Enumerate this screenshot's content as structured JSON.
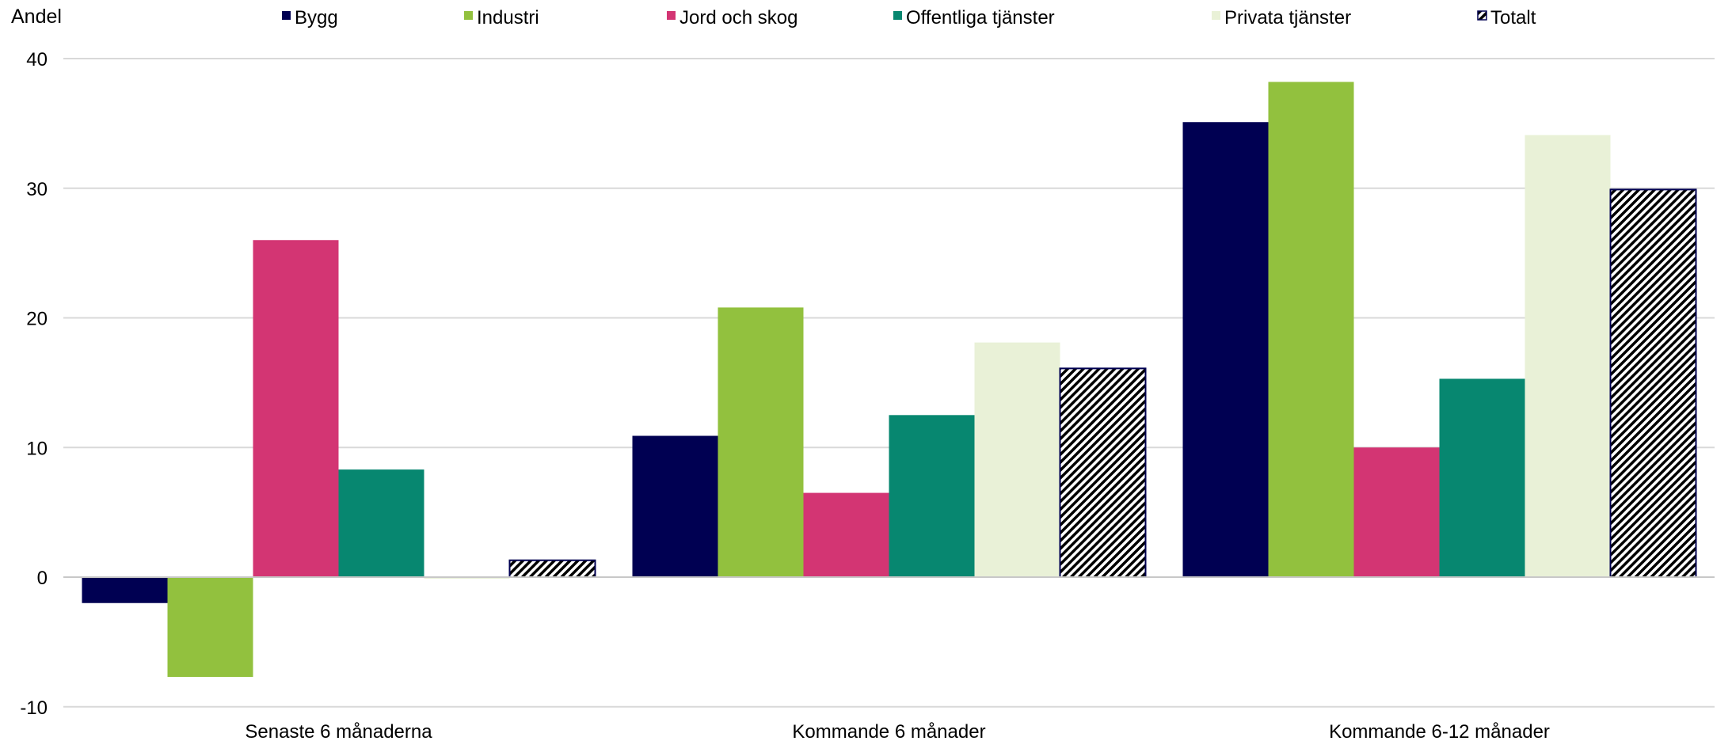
{
  "chart_data": {
    "type": "bar",
    "ylabel": "Andel",
    "ylim": [
      -10,
      40
    ],
    "yticks": [
      -10,
      0,
      10,
      20,
      30,
      40
    ],
    "grid": true,
    "legend_position": "top",
    "categories": [
      "Senaste 6 månaderna",
      "Kommande 6 månader",
      "Kommande 6-12 månader"
    ],
    "series": [
      {
        "name": "Bygg",
        "color": "#000052",
        "values": [
          -2.0,
          10.9,
          35.1
        ]
      },
      {
        "name": "Industri",
        "color": "#92C13E",
        "values": [
          -7.7,
          20.8,
          38.2
        ]
      },
      {
        "name": "Jord och skog",
        "color": "#D33573",
        "values": [
          26.0,
          6.5,
          10.0
        ]
      },
      {
        "name": "Offentliga tjänster",
        "color": "#078770",
        "values": [
          8.3,
          12.5,
          15.3
        ]
      },
      {
        "name": "Privata tjänster",
        "color": "#E9F1D7",
        "values": [
          -0.1,
          18.1,
          34.1
        ]
      },
      {
        "name": "Totalt",
        "color": "hatched",
        "values": [
          1.3,
          16.1,
          29.9
        ]
      }
    ]
  }
}
